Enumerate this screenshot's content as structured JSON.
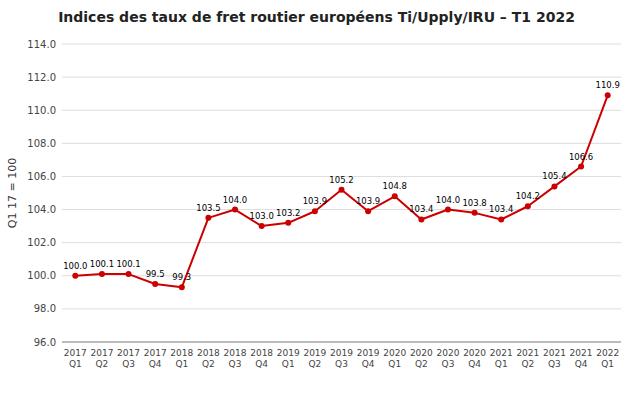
{
  "chart_data": {
    "type": "line",
    "title": "Indices des taux de fret routier européens Ti/Upply/IRU – T1 2022",
    "ylabel": "Q1 17 = 100",
    "categories": [
      "2017\nQ1",
      "2017\nQ2",
      "2017\nQ3",
      "2017\nQ4",
      "2018\nQ1",
      "2018\nQ2",
      "2018\nQ3",
      "2018\nQ4",
      "2019\nQ1",
      "2019\nQ2",
      "2019\nQ3",
      "2019\nQ4",
      "2020\nQ1",
      "2020\nQ2",
      "2020\nQ3",
      "2020\nQ4",
      "2021\nQ1",
      "2021\nQ2",
      "2021\nQ3",
      "2021\nQ4",
      "2022\nQ1"
    ],
    "values": [
      100.0,
      100.1,
      100.1,
      99.5,
      99.3,
      103.5,
      104.0,
      103.0,
      103.2,
      103.9,
      105.2,
      103.9,
      104.8,
      103.4,
      104.0,
      103.8,
      103.4,
      104.2,
      105.4,
      106.6,
      110.9
    ],
    "value_labels": [
      "100.0",
      "100.1",
      "100.1",
      "99.5",
      "99.3",
      "103.5",
      "104.0",
      "103.0",
      "103.2",
      "103.9",
      "105.2",
      "103.9",
      "104.8",
      "103.4",
      "104.0",
      "103.8",
      "103.4",
      "104.2",
      "105.4",
      "106.6",
      "110.9"
    ],
    "data_labels": true,
    "color": "#cc0000",
    "marker": "circle",
    "ylim": [
      96.0,
      114.0
    ],
    "yticks": [
      {
        "value": 96.0,
        "label": "96.0"
      },
      {
        "value": 98.0,
        "label": "98.0"
      },
      {
        "value": 100.0,
        "label": "100.0"
      },
      {
        "value": 102.0,
        "label": "102.0"
      },
      {
        "value": 104.0,
        "label": "104.0"
      },
      {
        "value": 106.0,
        "label": "106.0"
      },
      {
        "value": 108.0,
        "label": "108.0"
      },
      {
        "value": 110.0,
        "label": "110.0"
      },
      {
        "value": 112.0,
        "label": "112.0"
      },
      {
        "value": 114.0,
        "label": "114.0"
      }
    ],
    "grid": true
  }
}
